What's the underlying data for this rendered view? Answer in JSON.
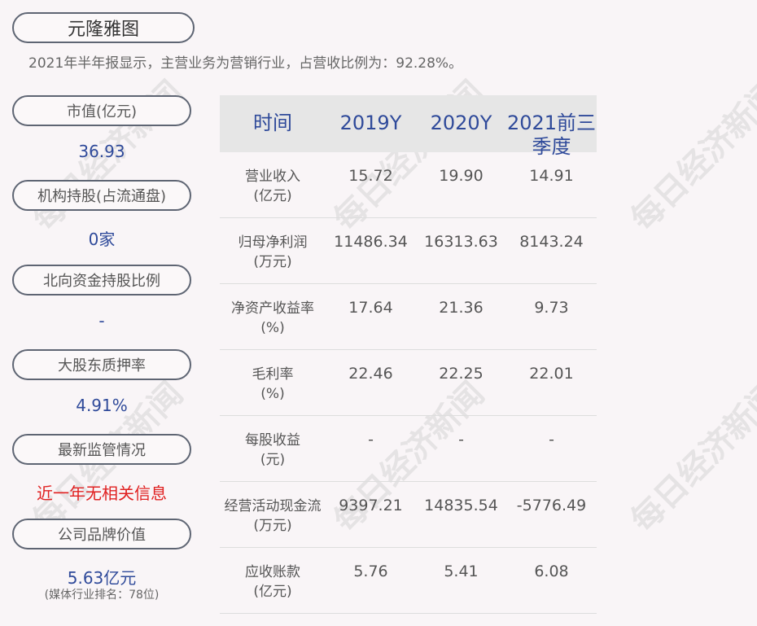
{
  "title": "元隆雅图",
  "summary": "2021年半年报显示，主营业务为营销行业，占营收比例为：92.28%。",
  "left": [
    {
      "label": "市值(亿元)",
      "value": "36.93"
    },
    {
      "label": "机构持股(占流通盘)",
      "value": "0家"
    },
    {
      "label": "北向资金持股比例",
      "value": "-"
    },
    {
      "label": "大股东质押率",
      "value": "4.91%"
    },
    {
      "label": "最新监管情况",
      "value": "近一年无相关信息"
    },
    {
      "label": "公司品牌价值",
      "value": "5.63亿元",
      "note": "(媒体行业排名：78位)"
    }
  ],
  "table": {
    "headers": [
      "时间",
      "2019Y",
      "2020Y",
      "2021前三季度"
    ],
    "rows": [
      {
        "label": "营业收入",
        "unit": "(亿元)",
        "values": [
          "15.72",
          "19.90",
          "14.91"
        ]
      },
      {
        "label": "归母净利润",
        "unit": "(万元)",
        "values": [
          "11486.34",
          "16313.63",
          "8143.24"
        ]
      },
      {
        "label": "净资产收益率",
        "unit": "(%)",
        "values": [
          "17.64",
          "21.36",
          "9.73"
        ]
      },
      {
        "label": "毛利率",
        "unit": "(%)",
        "values": [
          "22.46",
          "22.25",
          "22.01"
        ]
      },
      {
        "label": "每股收益",
        "unit": "(元)",
        "values": [
          "-",
          "-",
          "-"
        ]
      },
      {
        "label": "经营活动现金流",
        "unit": "(万元)",
        "values": [
          "9397.21",
          "14835.54",
          "-5776.49"
        ]
      },
      {
        "label": "应收账款",
        "unit": "(亿元)",
        "values": [
          "5.76",
          "5.41",
          "6.08"
        ]
      }
    ]
  },
  "watermark": "每日经济新闻",
  "colors": {
    "accent": "#2f4a9a",
    "alert": "#e02020"
  }
}
